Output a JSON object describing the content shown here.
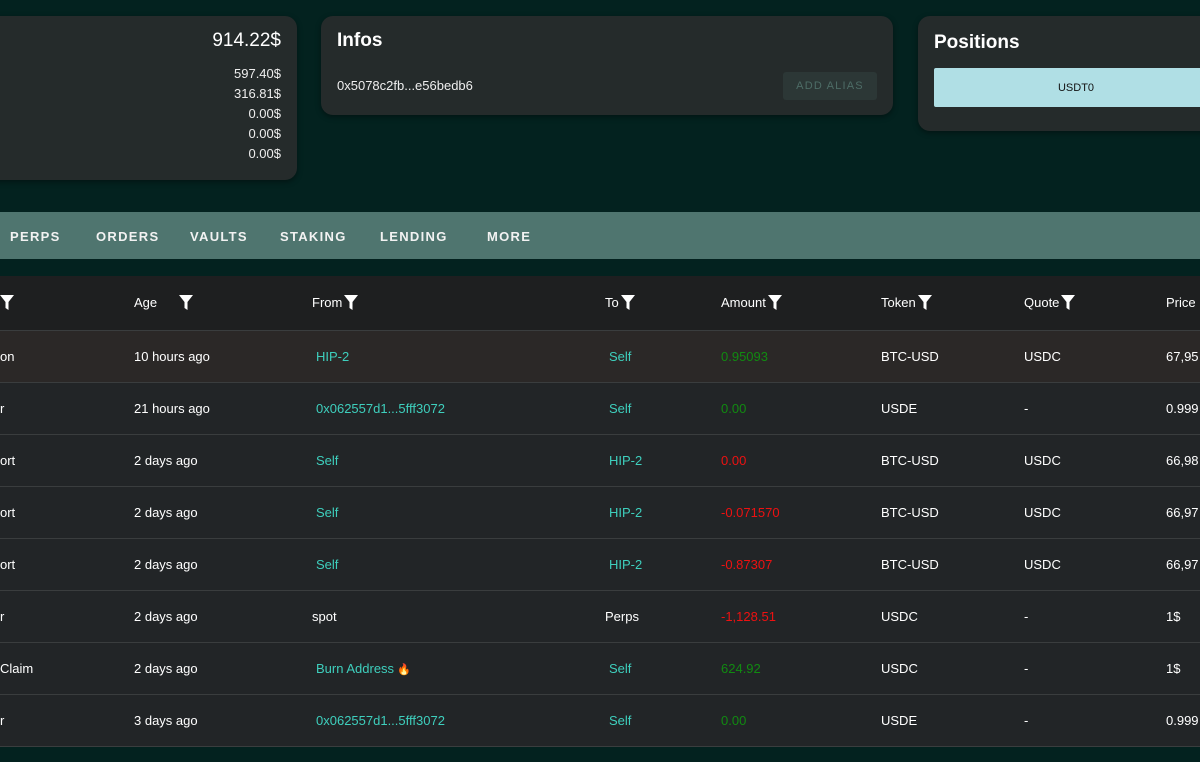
{
  "balance": {
    "total": "914.22$",
    "items": [
      "597.40$",
      "316.81$",
      "0.00$",
      "0.00$",
      "0.00$"
    ]
  },
  "infos": {
    "title": "Infos",
    "address": "0x5078c2fb...e56bedb6",
    "add_alias": "ADD ALIAS"
  },
  "positions": {
    "title": "Positions",
    "items": [
      "USDT0"
    ]
  },
  "tabs": [
    "PERPS",
    "ORDERS",
    "VAULTS",
    "STAKING",
    "LENDING",
    "MORE"
  ],
  "table": {
    "headers": [
      "",
      "Age",
      "From",
      "To",
      "Amount",
      "Token",
      "Quote",
      "Price"
    ],
    "rows": [
      {
        "type": "on",
        "age": "10 hours ago",
        "from": "HIP-2",
        "to": "Self",
        "amount": "0.95093",
        "token": "BTC-USD",
        "quote": "USDC",
        "price": "67,95",
        "from_link": true,
        "to_link": true,
        "sign": "pos"
      },
      {
        "type": "r",
        "age": "21 hours ago",
        "from": "0x062557d1...5fff3072",
        "to": "Self",
        "amount": "0.00",
        "token": "USDE",
        "quote": "-",
        "price": "0.999",
        "from_link": true,
        "to_link": true,
        "sign": "pos"
      },
      {
        "type": "ort",
        "age": "2 days ago",
        "from": "Self",
        "to": "HIP-2",
        "amount": "0.00",
        "token": "BTC-USD",
        "quote": "USDC",
        "price": "66,98",
        "from_link": true,
        "to_link": true,
        "sign": "neg"
      },
      {
        "type": "ort",
        "age": "2 days ago",
        "from": "Self",
        "to": "HIP-2",
        "amount": "-0.071570",
        "token": "BTC-USD",
        "quote": "USDC",
        "price": "66,97",
        "from_link": true,
        "to_link": true,
        "sign": "neg"
      },
      {
        "type": "ort",
        "age": "2 days ago",
        "from": "Self",
        "to": "HIP-2",
        "amount": "-0.87307",
        "token": "BTC-USD",
        "quote": "USDC",
        "price": "66,97",
        "from_link": true,
        "to_link": true,
        "sign": "neg"
      },
      {
        "type": "r",
        "age": "2 days ago",
        "from": "spot",
        "to": "Perps",
        "amount": "-1,128.51",
        "token": "USDC",
        "quote": "-",
        "price": "1$",
        "from_link": false,
        "to_link": false,
        "sign": "neg"
      },
      {
        "type": "Claim",
        "age": "2 days ago",
        "from": "Burn Address",
        "from_icon": "fire-icon",
        "to": "Self",
        "amount": "624.92",
        "token": "USDC",
        "quote": "-",
        "price": "1$",
        "from_link": true,
        "to_link": true,
        "sign": "pos"
      },
      {
        "type": "r",
        "age": "3 days ago",
        "from": "0x062557d1...5fff3072",
        "to": "Self",
        "amount": "0.00",
        "token": "USDE",
        "quote": "-",
        "price": "0.999",
        "from_link": true,
        "to_link": true,
        "sign": "pos"
      }
    ]
  },
  "colors": {
    "background": "#03221f",
    "card": "#252b2b",
    "tabbar": "#4f756f",
    "link": "#3ecfbd",
    "positive": "#118a11",
    "negative": "#ee1111",
    "chip": "#b0dfe5"
  }
}
